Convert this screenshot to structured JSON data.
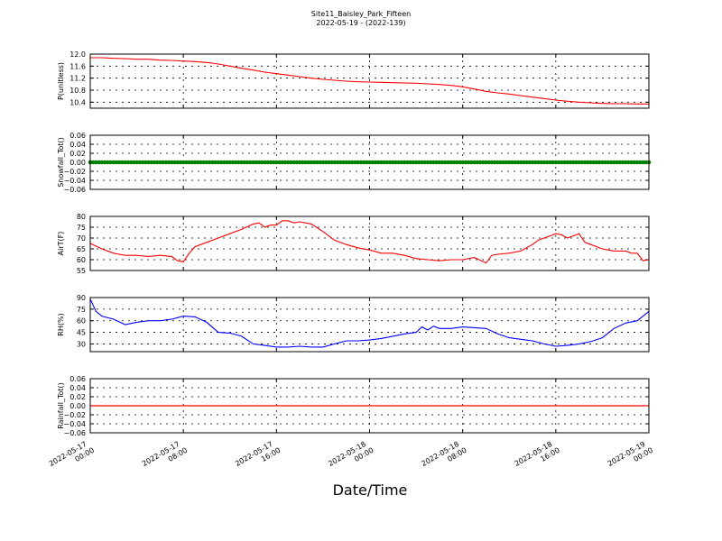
{
  "figure": {
    "title_line1": "Site11_Baisley_Park_Fifteen",
    "title_line2": "2022-05-19 - (2022-139)",
    "xlabel": "Date/Time"
  },
  "chart_data": [
    {
      "type": "line",
      "ylabel": "P(unitless)",
      "yticks": [
        "10.4",
        "10.8",
        "11.2",
        "11.6",
        "12.0"
      ],
      "ylim": [
        10.2,
        12.0
      ],
      "color": "#ff0000",
      "grid": true,
      "x_hours": [
        0,
        1,
        2,
        3,
        4,
        5,
        6,
        7,
        8,
        9,
        10,
        11,
        12,
        13,
        14,
        15,
        16,
        17,
        18,
        19,
        20,
        21,
        22,
        23,
        24,
        25,
        26,
        27,
        28,
        29,
        30,
        31,
        32,
        33,
        34,
        35,
        36,
        37,
        38,
        39,
        40,
        41,
        42,
        43,
        44,
        45,
        46,
        47,
        48
      ],
      "values": [
        11.88,
        11.88,
        11.86,
        11.85,
        11.83,
        11.83,
        11.8,
        11.79,
        11.77,
        11.75,
        11.72,
        11.67,
        11.6,
        11.53,
        11.47,
        11.4,
        11.35,
        11.3,
        11.25,
        11.2,
        11.16,
        11.13,
        11.1,
        11.08,
        11.07,
        11.06,
        11.05,
        11.04,
        11.03,
        11.01,
        10.99,
        10.96,
        10.91,
        10.84,
        10.76,
        10.71,
        10.67,
        10.62,
        10.57,
        10.52,
        10.47,
        10.43,
        10.4,
        10.38,
        10.36,
        10.35,
        10.35,
        10.34,
        10.34
      ]
    },
    {
      "type": "scatter",
      "ylabel": "Snowfall_Tot()",
      "yticks": [
        "−0.06",
        "−0.04",
        "−0.02",
        "0.00",
        "0.02",
        "0.04",
        "0.06"
      ],
      "ylim": [
        -0.06,
        0.06
      ],
      "color": "#008000",
      "grid": true,
      "constant_value": 0.0
    },
    {
      "type": "line",
      "ylabel": "AirT(F)",
      "yticks": [
        "55",
        "60",
        "65",
        "70",
        "75",
        "80"
      ],
      "ylim": [
        55,
        80
      ],
      "color": "#ff0000",
      "grid": true,
      "x_hours": [
        0,
        1,
        2,
        3,
        4,
        5,
        6,
        7,
        7.5,
        8,
        8.5,
        9,
        10,
        11,
        12,
        13,
        14,
        14.5,
        15,
        15.5,
        16,
        16.5,
        17,
        17.5,
        18,
        19,
        20,
        21,
        22,
        23,
        24,
        25,
        26,
        27,
        28,
        29,
        30,
        31,
        32,
        33,
        34,
        34.5,
        35,
        36,
        37,
        38,
        38.5,
        39,
        39.5,
        40,
        40.5,
        41,
        41.5,
        42,
        42.5,
        43,
        44,
        45,
        46,
        46.5,
        47,
        47.5,
        48
      ],
      "values": [
        67.5,
        65,
        63,
        62,
        62,
        61.5,
        62,
        61.5,
        59.5,
        59,
        63,
        66,
        68,
        70,
        72,
        74,
        76.5,
        77,
        75,
        76,
        76,
        78,
        78,
        77,
        77.5,
        76.5,
        73,
        69,
        67,
        65.5,
        64.5,
        63,
        63,
        62,
        60.5,
        60,
        59.5,
        60,
        60,
        61,
        58.5,
        62,
        62.5,
        63,
        64,
        67,
        69,
        70,
        71,
        72,
        71.5,
        70,
        71,
        72,
        68,
        67,
        65,
        64,
        64,
        63,
        63,
        59.5,
        60
      ]
    },
    {
      "type": "line",
      "ylabel": "RH(%)",
      "yticks": [
        "30",
        "45",
        "60",
        "75",
        "90"
      ],
      "ylim": [
        20,
        90
      ],
      "color": "#0000ff",
      "grid": true,
      "x_hours": [
        0,
        0.5,
        1,
        2,
        3,
        4,
        5,
        6,
        7,
        8,
        9,
        10,
        11,
        12,
        13,
        14,
        15,
        16,
        17,
        18,
        19,
        20,
        21,
        22,
        23,
        24,
        25,
        26,
        27,
        28,
        28.5,
        29,
        29.5,
        30,
        31,
        32,
        33,
        34,
        35,
        36,
        37,
        38,
        39,
        40,
        41,
        42,
        43,
        44,
        45,
        46,
        47,
        48
      ],
      "values": [
        88,
        72,
        66,
        62,
        55,
        58,
        60,
        60,
        62,
        66,
        65,
        58,
        45,
        44,
        40,
        30,
        28,
        26,
        26,
        27,
        26,
        26,
        30,
        34,
        34,
        35,
        37,
        40,
        43,
        45,
        52,
        48,
        53,
        50,
        50,
        52,
        51,
        50,
        43,
        38,
        36,
        34,
        30,
        27,
        28,
        30,
        33,
        38,
        50,
        57,
        60,
        72
      ]
    },
    {
      "type": "line",
      "ylabel": "Rainfall_Tot()",
      "yticks": [
        "−0.06",
        "−0.04",
        "−0.02",
        "0.00",
        "0.02",
        "0.04",
        "0.06"
      ],
      "ylim": [
        -0.06,
        0.06
      ],
      "color": "#ff0000",
      "grid": true,
      "constant_value": 0.0
    }
  ],
  "x_axis": {
    "tick_labels": [
      [
        "2022-05-17",
        "00:00"
      ],
      [
        "2022-05-17",
        "08:00"
      ],
      [
        "2022-05-17",
        "16:00"
      ],
      [
        "2022-05-18",
        "00:00"
      ],
      [
        "2022-05-18",
        "08:00"
      ],
      [
        "2022-05-18",
        "16:00"
      ],
      [
        "2022-05-19",
        "00:00"
      ]
    ],
    "tick_hours": [
      0,
      8,
      16,
      24,
      32,
      40,
      48
    ]
  }
}
